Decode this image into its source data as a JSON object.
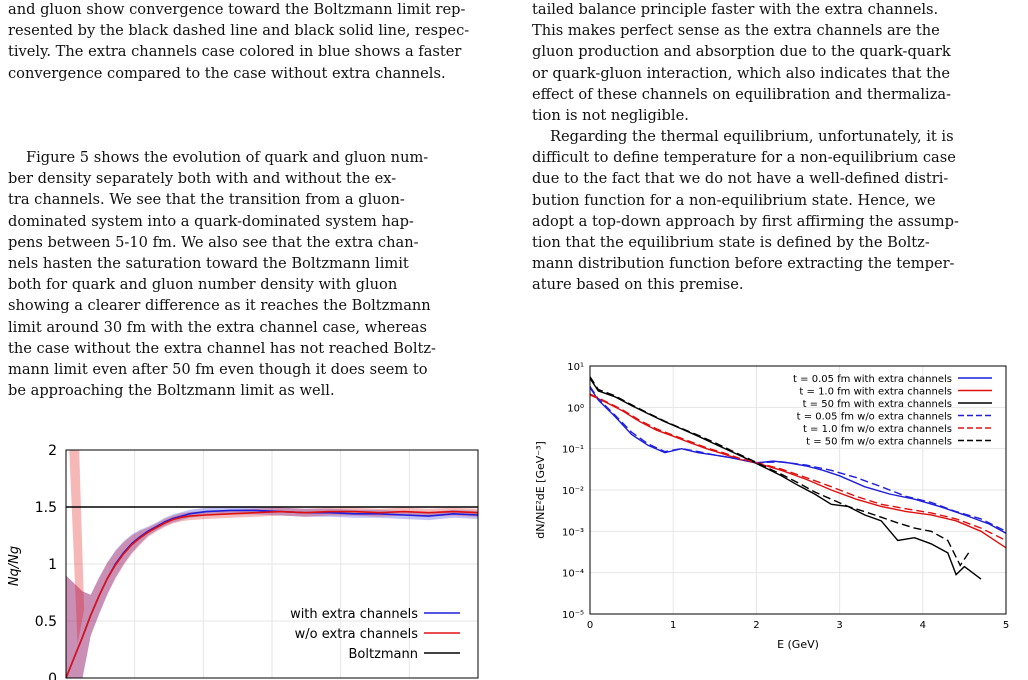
{
  "left_column": {
    "intro_lines": [
      "and gluon show convergence toward the Boltzmann limit rep-",
      "resented by the black dashed line and black solid line, respec-",
      "tively. The extra channels case colored in blue shows a faster",
      "convergence compared to the case without extra channels."
    ],
    "paragraph_lines": [
      "Figure 5 shows the evolution of quark and gluon num-",
      "ber density separately both with and without the ex-",
      "tra channels. We see that the transition from a gluon-",
      "dominated system into a quark-dominated system hap-",
      "pens between 5-10 fm. We also see that the extra chan-",
      "nels hasten the saturation toward the Boltzmann limit",
      "both for quark and gluon number density with gluon",
      "showing a clearer difference as it reaches the Boltzmann",
      "limit around 30 fm with the extra channel case, whereas",
      "the case without the extra channel has not reached Boltz-",
      "mann limit even after 50 fm even though it does seem to",
      "be approaching the Boltzmann limit as well."
    ]
  },
  "right_column": {
    "para1_lines": [
      "tailed balance principle faster with the extra channels.",
      "This makes perfect sense as the extra channels are the",
      "gluon production and absorption due to the quark-quark",
      "or quark-gluon interaction, which also indicates that the",
      "effect of these channels on equilibration and thermaliza-",
      "tion is not negligible."
    ],
    "para2_lines": [
      "Regarding the thermal equilibrium, unfortunately, it is",
      "difficult to define temperature for a non-equilibrium case",
      "due to the fact that we do not have a well-defined distri-",
      "bution function for a non-equilibrium state. Hence, we",
      "adopt a top-down approach by first affirming the assump-",
      "tion that the equilibrium state is defined by the Boltz-",
      "mann distribution function before extracting the temper-",
      "ature based on this premise."
    ]
  },
  "colors": {
    "blue": "#1f1fdc",
    "red": "#e01010",
    "black": "#000000"
  },
  "chart_data": [
    {
      "type": "line",
      "ylabel": "Nq/Ng",
      "ylim": [
        0,
        2
      ],
      "yticks": [
        "0",
        "0.5",
        "1",
        "1.5",
        "2"
      ],
      "legend_position": "bottom-right",
      "series": [
        {
          "name": "with extra channels",
          "color": "#1f1fdc",
          "points": [
            [
              0,
              0
            ],
            [
              1,
              0.18
            ],
            [
              2,
              0.36
            ],
            [
              3,
              0.55
            ],
            [
              4,
              0.72
            ],
            [
              5,
              0.87
            ],
            [
              6,
              1.0
            ],
            [
              7,
              1.1
            ],
            [
              8,
              1.18
            ],
            [
              9,
              1.24
            ],
            [
              10,
              1.29
            ],
            [
              11,
              1.33
            ],
            [
              12,
              1.37
            ],
            [
              13,
              1.4
            ],
            [
              14,
              1.42
            ],
            [
              15,
              1.44
            ],
            [
              17,
              1.46
            ],
            [
              20,
              1.47
            ],
            [
              23,
              1.47
            ],
            [
              26,
              1.46
            ],
            [
              29,
              1.45
            ],
            [
              32,
              1.45
            ],
            [
              35,
              1.44
            ],
            [
              38,
              1.44
            ],
            [
              41,
              1.43
            ],
            [
              44,
              1.42
            ],
            [
              47,
              1.44
            ],
            [
              50,
              1.43
            ]
          ]
        },
        {
          "name": "w/o extra channels",
          "color": "#e01010",
          "points": [
            [
              0,
              0
            ],
            [
              1,
              0.18
            ],
            [
              2,
              0.36
            ],
            [
              3,
              0.55
            ],
            [
              4,
              0.72
            ],
            [
              5,
              0.87
            ],
            [
              6,
              0.99
            ],
            [
              7,
              1.09
            ],
            [
              8,
              1.17
            ],
            [
              9,
              1.23
            ],
            [
              10,
              1.28
            ],
            [
              11,
              1.32
            ],
            [
              12,
              1.36
            ],
            [
              13,
              1.39
            ],
            [
              14,
              1.41
            ],
            [
              15,
              1.42
            ],
            [
              17,
              1.43
            ],
            [
              20,
              1.44
            ],
            [
              23,
              1.45
            ],
            [
              26,
              1.46
            ],
            [
              29,
              1.45
            ],
            [
              32,
              1.46
            ],
            [
              35,
              1.46
            ],
            [
              38,
              1.45
            ],
            [
              41,
              1.46
            ],
            [
              44,
              1.45
            ],
            [
              47,
              1.46
            ],
            [
              50,
              1.45
            ]
          ]
        },
        {
          "name": "Boltzmann",
          "color": "#000000",
          "points": [
            [
              0,
              1.5
            ],
            [
              50,
              1.5
            ]
          ]
        }
      ]
    },
    {
      "type": "line",
      "xlabel": "E (GeV)",
      "ylabel": "dN/NE²dE [GeV⁻³]",
      "xlim": [
        0,
        5
      ],
      "ylim_log10": [
        -5,
        1
      ],
      "log_y": true,
      "xticks": [
        "0",
        "1",
        "2",
        "3",
        "4",
        "5"
      ],
      "yticks": [
        "10⁻⁵",
        "10⁻⁴",
        "10⁻³",
        "10⁻²",
        "10⁻¹",
        "10⁰",
        "10¹"
      ],
      "legend_position": "top-right",
      "series": [
        {
          "name": "t = 0.05 fm with extra channels",
          "color": "#1f1fdc",
          "dash": false,
          "points": [
            [
              0,
              3
            ],
            [
              0.1,
              1.5
            ],
            [
              0.3,
              0.6
            ],
            [
              0.5,
              0.22
            ],
            [
              0.7,
              0.12
            ],
            [
              0.9,
              0.08
            ],
            [
              1.1,
              0.1
            ],
            [
              1.3,
              0.08
            ],
            [
              1.5,
              0.07
            ],
            [
              1.7,
              0.06
            ],
            [
              2,
              0.045
            ],
            [
              2.2,
              0.05
            ],
            [
              2.4,
              0.045
            ],
            [
              2.6,
              0.038
            ],
            [
              2.8,
              0.03
            ],
            [
              3,
              0.022
            ],
            [
              3.3,
              0.012
            ],
            [
              3.6,
              0.008
            ],
            [
              3.9,
              0.006
            ],
            [
              4.2,
              0.004
            ],
            [
              4.5,
              0.0025
            ],
            [
              4.8,
              0.0015
            ],
            [
              5,
              0.0009
            ]
          ]
        },
        {
          "name": "t = 1.0 fm with extra channels",
          "color": "#e01010",
          "dash": false,
          "points": [
            [
              0,
              2
            ],
            [
              0.2,
              1.3
            ],
            [
              0.4,
              0.8
            ],
            [
              0.6,
              0.45
            ],
            [
              0.8,
              0.28
            ],
            [
              1,
              0.2
            ],
            [
              1.2,
              0.14
            ],
            [
              1.4,
              0.1
            ],
            [
              1.6,
              0.075
            ],
            [
              1.8,
              0.055
            ],
            [
              2,
              0.045
            ],
            [
              2.3,
              0.03
            ],
            [
              2.6,
              0.018
            ],
            [
              2.9,
              0.01
            ],
            [
              3.2,
              0.006
            ],
            [
              3.5,
              0.004
            ],
            [
              3.8,
              0.003
            ],
            [
              4.1,
              0.0025
            ],
            [
              4.4,
              0.0018
            ],
            [
              4.7,
              0.001
            ],
            [
              5,
              0.0004
            ]
          ]
        },
        {
          "name": "t = 50 fm with extra channels",
          "color": "#000000",
          "dash": false,
          "points": [
            [
              0,
              5
            ],
            [
              0.1,
              2.5
            ],
            [
              0.3,
              1.8
            ],
            [
              0.5,
              1.1
            ],
            [
              0.7,
              0.7
            ],
            [
              0.9,
              0.45
            ],
            [
              1.1,
              0.3
            ],
            [
              1.3,
              0.2
            ],
            [
              1.5,
              0.13
            ],
            [
              1.7,
              0.085
            ],
            [
              1.9,
              0.055
            ],
            [
              2.1,
              0.035
            ],
            [
              2.3,
              0.022
            ],
            [
              2.5,
              0.013
            ],
            [
              2.7,
              0.008
            ],
            [
              2.9,
              0.0045
            ],
            [
              3.1,
              0.004
            ],
            [
              3.3,
              0.0025
            ],
            [
              3.5,
              0.0018
            ],
            [
              3.7,
              0.0006
            ],
            [
              3.9,
              0.0007
            ],
            [
              4.1,
              0.0005
            ],
            [
              4.3,
              0.0003
            ],
            [
              4.4,
              9e-05
            ],
            [
              4.5,
              0.00014
            ],
            [
              4.7,
              7e-05
            ]
          ]
        },
        {
          "name": "t = 0.05 fm w/o extra channels",
          "color": "#1f1fdc",
          "dash": true,
          "points": [
            [
              0,
              3.2
            ],
            [
              0.1,
              1.6
            ],
            [
              0.3,
              0.65
            ],
            [
              0.5,
              0.25
            ],
            [
              0.7,
              0.13
            ],
            [
              0.9,
              0.085
            ],
            [
              1.1,
              0.1
            ],
            [
              1.3,
              0.085
            ],
            [
              1.5,
              0.07
            ],
            [
              1.7,
              0.06
            ],
            [
              2,
              0.046
            ],
            [
              2.3,
              0.048
            ],
            [
              2.6,
              0.04
            ],
            [
              2.9,
              0.03
            ],
            [
              3.2,
              0.02
            ],
            [
              3.5,
              0.012
            ],
            [
              3.8,
              0.007
            ],
            [
              4.1,
              0.005
            ],
            [
              4.4,
              0.003
            ],
            [
              4.7,
              0.002
            ],
            [
              5,
              0.001
            ]
          ]
        },
        {
          "name": "t = 1.0 fm w/o extra channels",
          "color": "#e01010",
          "dash": true,
          "points": [
            [
              0,
              2.1
            ],
            [
              0.2,
              1.35
            ],
            [
              0.4,
              0.85
            ],
            [
              0.6,
              0.48
            ],
            [
              0.8,
              0.3
            ],
            [
              1,
              0.21
            ],
            [
              1.2,
              0.15
            ],
            [
              1.4,
              0.105
            ],
            [
              1.6,
              0.08
            ],
            [
              1.8,
              0.058
            ],
            [
              2,
              0.046
            ],
            [
              2.3,
              0.032
            ],
            [
              2.6,
              0.02
            ],
            [
              2.9,
              0.012
            ],
            [
              3.2,
              0.007
            ],
            [
              3.5,
              0.0045
            ],
            [
              3.8,
              0.0035
            ],
            [
              4.1,
              0.0028
            ],
            [
              4.4,
              0.002
            ],
            [
              4.7,
              0.0012
            ],
            [
              5,
              0.0006
            ]
          ]
        },
        {
          "name": "t = 50 fm w/o extra channels",
          "color": "#000000",
          "dash": true,
          "points": [
            [
              0,
              5.5
            ],
            [
              0.1,
              2.7
            ],
            [
              0.3,
              1.9
            ],
            [
              0.5,
              1.15
            ],
            [
              0.7,
              0.72
            ],
            [
              0.9,
              0.46
            ],
            [
              1.1,
              0.31
            ],
            [
              1.3,
              0.21
            ],
            [
              1.5,
              0.14
            ],
            [
              1.7,
              0.09
            ],
            [
              1.9,
              0.058
            ],
            [
              2.1,
              0.037
            ],
            [
              2.3,
              0.024
            ],
            [
              2.5,
              0.015
            ],
            [
              2.7,
              0.009
            ],
            [
              2.9,
              0.006
            ],
            [
              3.1,
              0.004
            ],
            [
              3.3,
              0.003
            ],
            [
              3.5,
              0.0022
            ],
            [
              3.7,
              0.0016
            ],
            [
              3.9,
              0.0012
            ],
            [
              4.1,
              0.001
            ],
            [
              4.3,
              0.0006
            ],
            [
              4.45,
              0.00015
            ],
            [
              4.55,
              0.0003
            ]
          ]
        }
      ]
    }
  ]
}
